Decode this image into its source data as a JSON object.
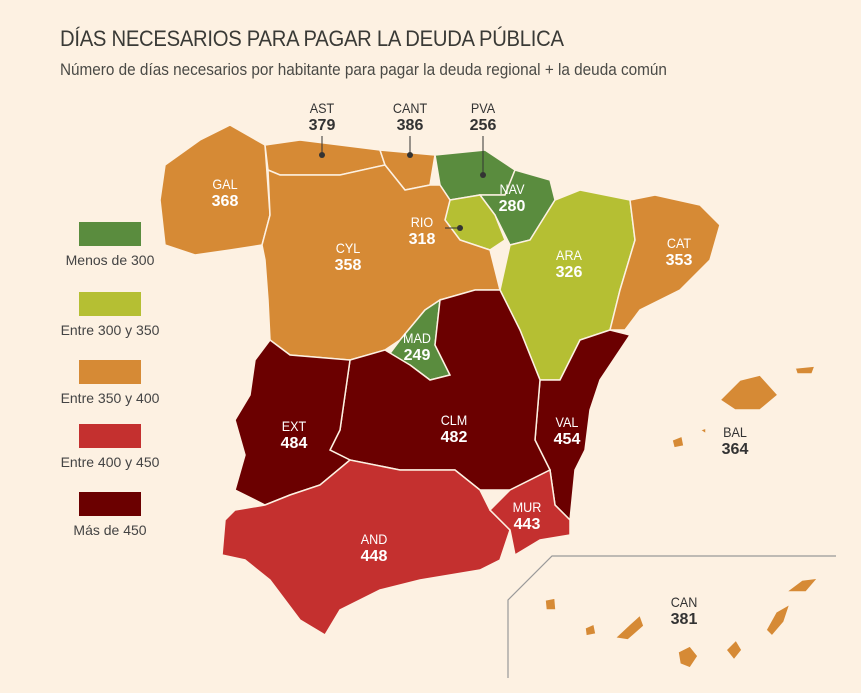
{
  "title": "DÍAS NECESARIOS PARA PAGAR LA DEUDA PÚBLICA",
  "subtitle": "Número de días necesarios por habitante para pagar la deuda regional + la deuda común",
  "legend": [
    {
      "label": "Menos de 300",
      "color": "#5a8c3e"
    },
    {
      "label": "Entre 300 y 350",
      "color": "#b5bf33"
    },
    {
      "label": "Entre 350 y 400",
      "color": "#d68a35"
    },
    {
      "label": "Entre 400 y 450",
      "color": "#c4302f"
    },
    {
      "label": "Más de 450",
      "color": "#6b0000"
    }
  ],
  "regions": {
    "GAL": {
      "code": "GAL",
      "value": "368",
      "cat": 2
    },
    "AST": {
      "code": "AST",
      "value": "379",
      "cat": 2
    },
    "CANT": {
      "code": "CANT",
      "value": "386",
      "cat": 2
    },
    "PVA": {
      "code": "PVA",
      "value": "256",
      "cat": 0
    },
    "NAV": {
      "code": "NAV",
      "value": "280",
      "cat": 0
    },
    "RIO": {
      "code": "RIO",
      "value": "318",
      "cat": 1
    },
    "CYL": {
      "code": "CYL",
      "value": "358",
      "cat": 2
    },
    "ARA": {
      "code": "ARA",
      "value": "326",
      "cat": 1
    },
    "CAT": {
      "code": "CAT",
      "value": "353",
      "cat": 2
    },
    "MAD": {
      "code": "MAD",
      "value": "249",
      "cat": 0
    },
    "EXT": {
      "code": "EXT",
      "value": "484",
      "cat": 4
    },
    "CLM": {
      "code": "CLM",
      "value": "482",
      "cat": 4
    },
    "VAL": {
      "code": "VAL",
      "value": "454",
      "cat": 4
    },
    "BAL": {
      "code": "BAL",
      "value": "364",
      "cat": 2
    },
    "MUR": {
      "code": "MUR",
      "value": "443",
      "cat": 3
    },
    "AND": {
      "code": "AND",
      "value": "448",
      "cat": 3
    },
    "CAN": {
      "code": "CAN",
      "value": "381",
      "cat": 2
    }
  }
}
